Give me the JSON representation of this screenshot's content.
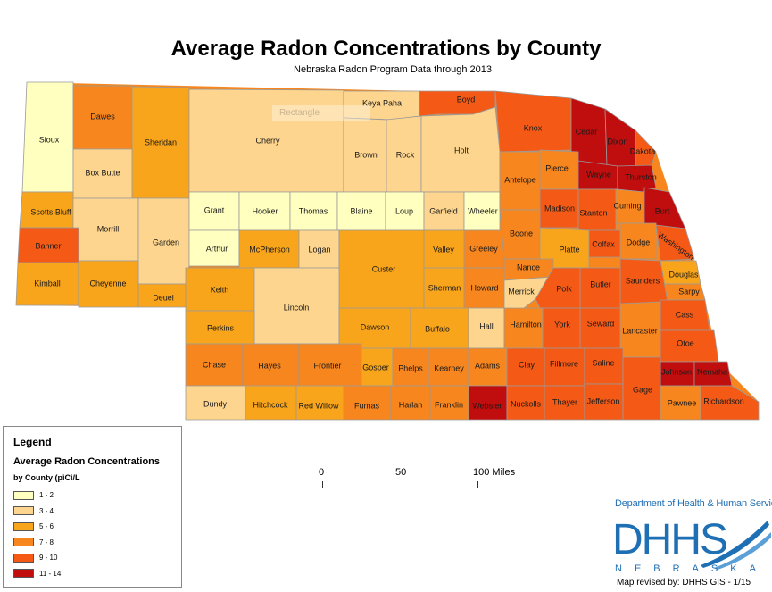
{
  "title": "Average Radon Concentrations by County",
  "subtitle": "Nebraska Radon Program Data through 2013",
  "ghost_label": "Rectangle",
  "legend": {
    "title": "Legend",
    "subtitle1": "Average Radon Concentrations",
    "subtitle2": "by County (piCi/L",
    "classes": [
      {
        "label": "1 - 2",
        "color": "#ffffc0"
      },
      {
        "label": "3 - 4",
        "color": "#fdd58e"
      },
      {
        "label": "5 - 6",
        "color": "#f9a51b"
      },
      {
        "label": "7 - 8",
        "color": "#f7861e"
      },
      {
        "label": "9 - 10",
        "color": "#f45a16"
      },
      {
        "label": "11 - 14",
        "color": "#c00d0d"
      }
    ]
  },
  "scale": {
    "labels": [
      "0",
      "50",
      "100 Miles"
    ]
  },
  "agency": {
    "header": "Department of Health & Human Services",
    "logo": "DHHS",
    "state": "NEBRASKA",
    "revised": "Map revised by: DHHS GIS - 1/15",
    "color": "#1f6fb5"
  },
  "counties": [
    {
      "name": "Sioux",
      "class": 0
    },
    {
      "name": "Dawes",
      "class": 3
    },
    {
      "name": "Sheridan",
      "class": 2
    },
    {
      "name": "Cherry",
      "class": 1
    },
    {
      "name": "Keya Paha",
      "class": 1
    },
    {
      "name": "Boyd",
      "class": 4
    },
    {
      "name": "Box Butte",
      "class": 1
    },
    {
      "name": "Brown",
      "class": 1
    },
    {
      "name": "Rock",
      "class": 1
    },
    {
      "name": "Holt",
      "class": 1
    },
    {
      "name": "Knox",
      "class": 4
    },
    {
      "name": "Cedar",
      "class": 5
    },
    {
      "name": "Dixon",
      "class": 5
    },
    {
      "name": "Dakota",
      "class": 4
    },
    {
      "name": "Scotts Bluff",
      "class": 2
    },
    {
      "name": "Banner",
      "class": 4
    },
    {
      "name": "Morrill",
      "class": 1
    },
    {
      "name": "Garden",
      "class": 1
    },
    {
      "name": "Grant",
      "class": 0
    },
    {
      "name": "Hooker",
      "class": 0
    },
    {
      "name": "Thomas",
      "class": 0
    },
    {
      "name": "Blaine",
      "class": 0
    },
    {
      "name": "Loup",
      "class": 0
    },
    {
      "name": "Garfield",
      "class": 1
    },
    {
      "name": "Wheeler",
      "class": 0
    },
    {
      "name": "Antelope",
      "class": 3
    },
    {
      "name": "Pierce",
      "class": 3
    },
    {
      "name": "Wayne",
      "class": 5
    },
    {
      "name": "Thurston",
      "class": 5
    },
    {
      "name": "Madison",
      "class": 4
    },
    {
      "name": "Stanton",
      "class": 4
    },
    {
      "name": "Cuming",
      "class": 3
    },
    {
      "name": "Burt",
      "class": 5
    },
    {
      "name": "Kimball",
      "class": 2
    },
    {
      "name": "Cheyenne",
      "class": 2
    },
    {
      "name": "Deuel",
      "class": 2
    },
    {
      "name": "Arthur",
      "class": 0
    },
    {
      "name": "McPherson",
      "class": 2
    },
    {
      "name": "Logan",
      "class": 1
    },
    {
      "name": "Custer",
      "class": 2
    },
    {
      "name": "Valley",
      "class": 2
    },
    {
      "name": "Greeley",
      "class": 3
    },
    {
      "name": "Boone",
      "class": 3
    },
    {
      "name": "Platte",
      "class": 2
    },
    {
      "name": "Colfax",
      "class": 4
    },
    {
      "name": "Dodge",
      "class": 3
    },
    {
      "name": "Washington",
      "class": 4
    },
    {
      "name": "Nance",
      "class": 3
    },
    {
      "name": "Douglas",
      "class": 2
    },
    {
      "name": "Sarpy",
      "class": 3
    },
    {
      "name": "Keith",
      "class": 2
    },
    {
      "name": "Lincoln",
      "class": 1
    },
    {
      "name": "Sherman",
      "class": 2
    },
    {
      "name": "Howard",
      "class": 3
    },
    {
      "name": "Merrick",
      "class": 1
    },
    {
      "name": "Polk",
      "class": 4
    },
    {
      "name": "Butler",
      "class": 4
    },
    {
      "name": "Saunders",
      "class": 4
    },
    {
      "name": "Cass",
      "class": 4
    },
    {
      "name": "Perkins",
      "class": 2
    },
    {
      "name": "Dawson",
      "class": 2
    },
    {
      "name": "Buffalo",
      "class": 2
    },
    {
      "name": "Hall",
      "class": 1
    },
    {
      "name": "Hamilton",
      "class": 3
    },
    {
      "name": "York",
      "class": 4
    },
    {
      "name": "Seward",
      "class": 4
    },
    {
      "name": "Lancaster",
      "class": 3
    },
    {
      "name": "Otoe",
      "class": 4
    },
    {
      "name": "Chase",
      "class": 3
    },
    {
      "name": "Hayes",
      "class": 3
    },
    {
      "name": "Frontier",
      "class": 3
    },
    {
      "name": "Gosper",
      "class": 2
    },
    {
      "name": "Phelps",
      "class": 3
    },
    {
      "name": "Kearney",
      "class": 3
    },
    {
      "name": "Adams",
      "class": 3
    },
    {
      "name": "Clay",
      "class": 4
    },
    {
      "name": "Fillmore",
      "class": 4
    },
    {
      "name": "Saline",
      "class": 4
    },
    {
      "name": "Johnson",
      "class": 5
    },
    {
      "name": "Nemaha",
      "class": 5
    },
    {
      "name": "Dundy",
      "class": 1
    },
    {
      "name": "Hitchcock",
      "class": 2
    },
    {
      "name": "Red Willow",
      "class": 2
    },
    {
      "name": "Furnas",
      "class": 3
    },
    {
      "name": "Harlan",
      "class": 3
    },
    {
      "name": "Franklin",
      "class": 3
    },
    {
      "name": "Webster",
      "class": 5
    },
    {
      "name": "Nuckolls",
      "class": 4
    },
    {
      "name": "Thayer",
      "class": 4
    },
    {
      "name": "Jefferson",
      "class": 4
    },
    {
      "name": "Gage",
      "class": 4
    },
    {
      "name": "Pawnee",
      "class": 3
    },
    {
      "name": "Richardson",
      "class": 4
    }
  ]
}
